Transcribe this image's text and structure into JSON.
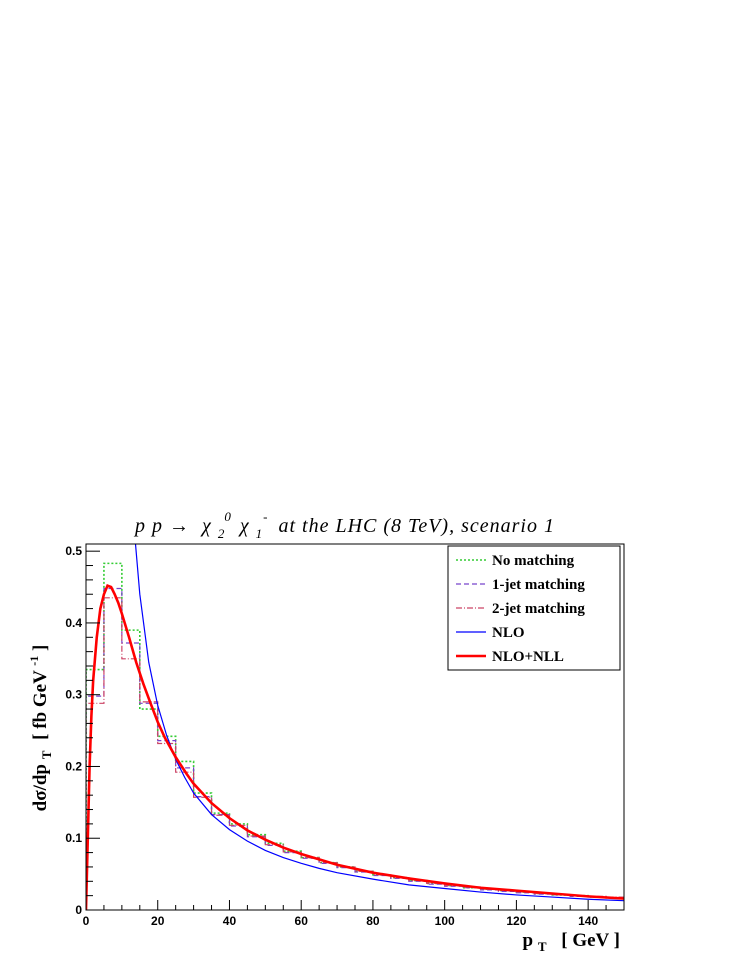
{
  "chart_data": {
    "type": "line",
    "title": {
      "prefix": "p p  →",
      "chi1": "χ",
      "chi1_sub": "2",
      "chi1_sup": "0",
      "chi2": "χ",
      "chi2_sub": "1",
      "chi2_sup": "-",
      "suffix": "at the LHC (8 TeV), scenario 1"
    },
    "xlabel": {
      "main": "p",
      "sub": "T",
      "unit": "[ GeV ]"
    },
    "ylabel": {
      "main": "dσ/dp",
      "sub": "T",
      "unit_open": "[ fb GeV",
      "unit_sup": "-1",
      "unit_close": " ]"
    },
    "xlim": [
      0,
      150
    ],
    "ylim": [
      0,
      0.51
    ],
    "x_ticks": [
      0,
      20,
      40,
      60,
      80,
      100,
      120,
      140
    ],
    "y_ticks": [
      0,
      0.1,
      0.2,
      0.3,
      0.4,
      0.5
    ],
    "x_tick_labels": [
      "0",
      "20",
      "40",
      "60",
      "80",
      "100",
      "120",
      "140"
    ],
    "y_tick_labels": [
      "0",
      "0.1",
      "0.2",
      "0.3",
      "0.4",
      "0.5"
    ],
    "legend_position": "top-right",
    "series": [
      {
        "name": "No matching",
        "style": "dotted-step",
        "color": "#33cc33",
        "bin_edges": [
          0,
          5,
          10,
          15,
          20,
          25,
          30,
          35,
          40,
          45,
          50,
          55,
          60,
          65,
          70,
          75,
          80,
          85,
          90,
          95,
          100,
          105,
          110,
          115,
          120,
          125,
          130,
          135,
          140,
          145,
          150
        ],
        "values": [
          0.335,
          0.483,
          0.39,
          0.28,
          0.242,
          0.207,
          0.163,
          0.135,
          0.12,
          0.105,
          0.093,
          0.082,
          0.073,
          0.066,
          0.06,
          0.054,
          0.049,
          0.045,
          0.041,
          0.037,
          0.034,
          0.031,
          0.029,
          0.027,
          0.025,
          0.023,
          0.021,
          0.02,
          0.018,
          0.017
        ]
      },
      {
        "name": "1-jet matching",
        "style": "dashed-step",
        "color": "#7744cc",
        "bin_edges": [
          0,
          5,
          10,
          15,
          20,
          25,
          30,
          35,
          40,
          45,
          50,
          55,
          60,
          65,
          70,
          75,
          80,
          85,
          90,
          95,
          100,
          105,
          110,
          115,
          120,
          125,
          130,
          135,
          140,
          145,
          150
        ],
        "values": [
          0.298,
          0.448,
          0.372,
          0.288,
          0.236,
          0.198,
          0.158,
          0.133,
          0.117,
          0.102,
          0.09,
          0.08,
          0.072,
          0.065,
          0.059,
          0.053,
          0.048,
          0.044,
          0.04,
          0.036,
          0.033,
          0.031,
          0.028,
          0.026,
          0.024,
          0.022,
          0.021,
          0.019,
          0.018,
          0.017
        ]
      },
      {
        "name": "2-jet matching",
        "style": "dashdot-step",
        "color": "#cc4466",
        "bin_edges": [
          0,
          5,
          10,
          15,
          20,
          25,
          30,
          35,
          40,
          45,
          50,
          55,
          60,
          65,
          70,
          75,
          80,
          85,
          90,
          95,
          100,
          105,
          110,
          115,
          120,
          125,
          130,
          135,
          140,
          145,
          150
        ],
        "values": [
          0.288,
          0.435,
          0.35,
          0.29,
          0.232,
          0.192,
          0.157,
          0.132,
          0.118,
          0.103,
          0.091,
          0.081,
          0.073,
          0.066,
          0.06,
          0.054,
          0.049,
          0.045,
          0.041,
          0.037,
          0.034,
          0.032,
          0.029,
          0.027,
          0.025,
          0.023,
          0.021,
          0.02,
          0.019,
          0.018
        ]
      },
      {
        "name": "NLO",
        "style": "solid",
        "color": "#0000ff",
        "x": [
          13.8,
          15,
          17.5,
          20,
          22.5,
          25,
          27.5,
          30,
          35,
          40,
          45,
          50,
          55,
          60,
          65,
          70,
          80,
          90,
          100,
          110,
          120,
          130,
          140,
          150
        ],
        "values": [
          0.51,
          0.44,
          0.345,
          0.285,
          0.243,
          0.21,
          0.185,
          0.163,
          0.133,
          0.112,
          0.096,
          0.083,
          0.073,
          0.065,
          0.058,
          0.052,
          0.043,
          0.035,
          0.03,
          0.025,
          0.021,
          0.018,
          0.015,
          0.013
        ]
      },
      {
        "name": "NLO+NLL",
        "style": "solid-thick",
        "color": "#ff0000",
        "x": [
          0,
          0.5,
          1,
          1.5,
          2,
          3,
          4,
          5,
          6,
          7,
          8,
          9,
          10,
          12,
          14,
          16,
          18,
          20,
          22,
          25,
          28,
          30,
          35,
          40,
          45,
          50,
          55,
          60,
          70,
          80,
          90,
          100,
          110,
          120,
          130,
          140,
          150
        ],
        "values": [
          0,
          0.1,
          0.2,
          0.27,
          0.32,
          0.38,
          0.42,
          0.44,
          0.452,
          0.45,
          0.44,
          0.428,
          0.413,
          0.38,
          0.345,
          0.315,
          0.288,
          0.262,
          0.24,
          0.213,
          0.19,
          0.176,
          0.149,
          0.128,
          0.111,
          0.098,
          0.087,
          0.078,
          0.063,
          0.052,
          0.044,
          0.037,
          0.031,
          0.027,
          0.023,
          0.019,
          0.016
        ]
      }
    ]
  }
}
